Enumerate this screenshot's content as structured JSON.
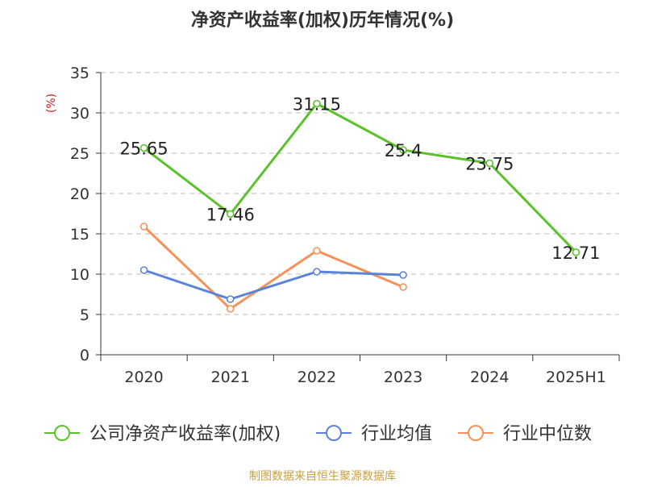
{
  "chart_data": {
    "type": "line",
    "title": "净资产收益率(加权)历年情况(%)",
    "ylabel": "(%)",
    "xlabel": "",
    "ylim": [
      0,
      35
    ],
    "yticks": [
      0,
      5,
      10,
      15,
      20,
      25,
      30,
      35
    ],
    "grid": true,
    "legend_position": "bottom",
    "categories": [
      "2020",
      "2021",
      "2022",
      "2023",
      "2024",
      "2025H1"
    ],
    "series": [
      {
        "name": "公司净资产收益率(加权)",
        "color": "#5cc22c",
        "values": [
          25.65,
          17.46,
          31.15,
          25.4,
          23.75,
          12.71
        ],
        "labels": [
          "25.65",
          "17.46",
          "31.15",
          "25.4",
          "23.75",
          "12.71"
        ]
      },
      {
        "name": "行业均值",
        "color": "#5b83d9",
        "values": [
          10.5,
          6.9,
          10.3,
          9.9,
          null,
          null
        ]
      },
      {
        "name": "行业中位数",
        "color": "#f7915a",
        "values": [
          15.9,
          5.7,
          12.9,
          8.4,
          null,
          null
        ]
      }
    ]
  },
  "source": "制图数据来自恒生聚源数据库"
}
